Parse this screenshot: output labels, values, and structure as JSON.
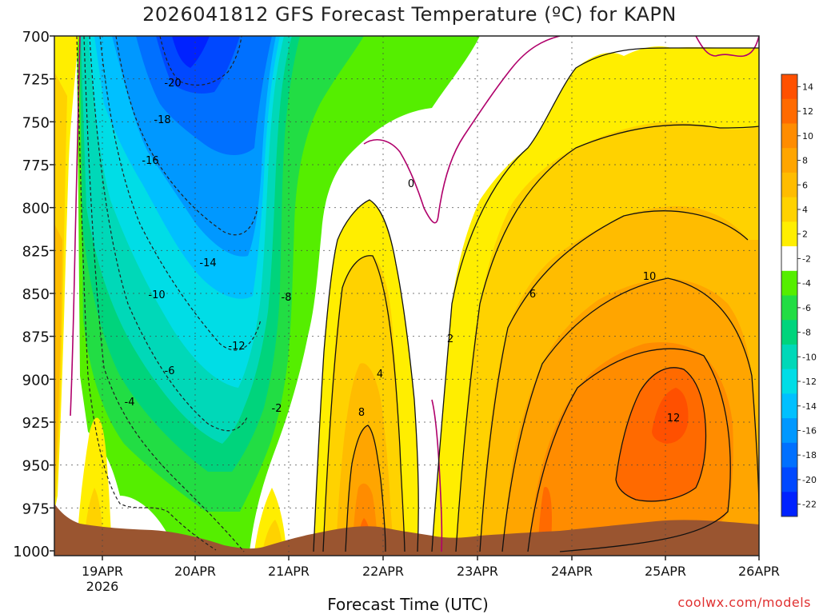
{
  "chart_data": {
    "type": "contour",
    "title": "2026041812 GFS Forecast Temperature (ºC) for KAPN",
    "xlabel": "Forecast Time (UTC)",
    "ylabel": "",
    "credit": "coolwx.com/models",
    "y_axis": {
      "ticks": [
        700,
        725,
        750,
        775,
        800,
        825,
        850,
        875,
        900,
        925,
        950,
        975,
        1000
      ],
      "inverted": true,
      "range": [
        1000,
        700
      ]
    },
    "x_axis": {
      "ticks": [
        "19APR",
        "20APR",
        "21APR",
        "22APR",
        "23APR",
        "24APR",
        "25APR",
        "26APR"
      ],
      "year_label": "2026"
    },
    "grid": true,
    "colorbar": {
      "labels": [
        "14",
        "12",
        "10",
        "8",
        "6",
        "4",
        "2",
        "-2",
        "-4",
        "-6",
        "-8",
        "-10",
        "-12",
        "-14",
        "-16",
        "-18",
        "-20",
        "-22"
      ],
      "colors": [
        "#ff5000",
        "#ff6a00",
        "#ff8c00",
        "#ffa500",
        "#ffbc00",
        "#ffd200",
        "#ffee00",
        "#ffffff",
        "#55ee00",
        "#22dd44",
        "#00d47c",
        "#00d8b8",
        "#00dde6",
        "#00c0ff",
        "#0098ff",
        "#0070ff",
        "#0048ff",
        "#0022ff"
      ]
    },
    "contour_labels": [
      "-20",
      "-18",
      "-16",
      "-14",
      "-12",
      "-10",
      "-8",
      "-6",
      "-4",
      "-2",
      "0",
      "2",
      "4",
      "6",
      "8",
      "10",
      "12"
    ],
    "terrain_color": "#9a5530"
  }
}
